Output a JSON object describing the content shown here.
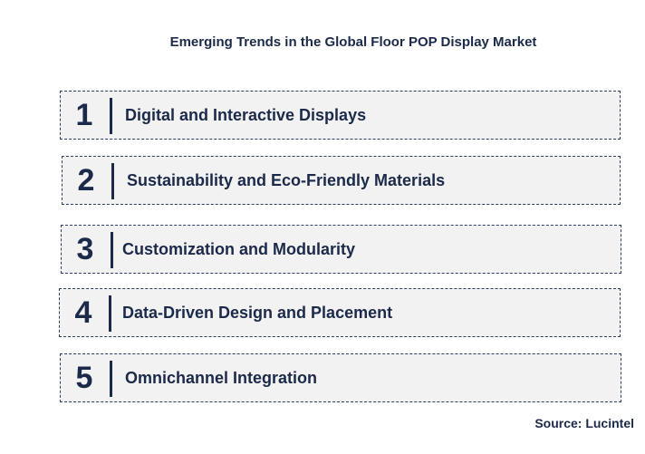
{
  "title": "Emerging Trends in the Global Floor POP Display Market",
  "trends": [
    {
      "number": "1",
      "label": "Digital and Interactive Displays"
    },
    {
      "number": "2",
      "label": "Sustainability and Eco-Friendly Materials"
    },
    {
      "number": "3",
      "label": "Customization and Modularity"
    },
    {
      "number": "4",
      "label": "Data-Driven Design and Placement"
    },
    {
      "number": "5",
      "label": "Omnichannel Integration"
    }
  ],
  "source": "Source: Lucintel"
}
